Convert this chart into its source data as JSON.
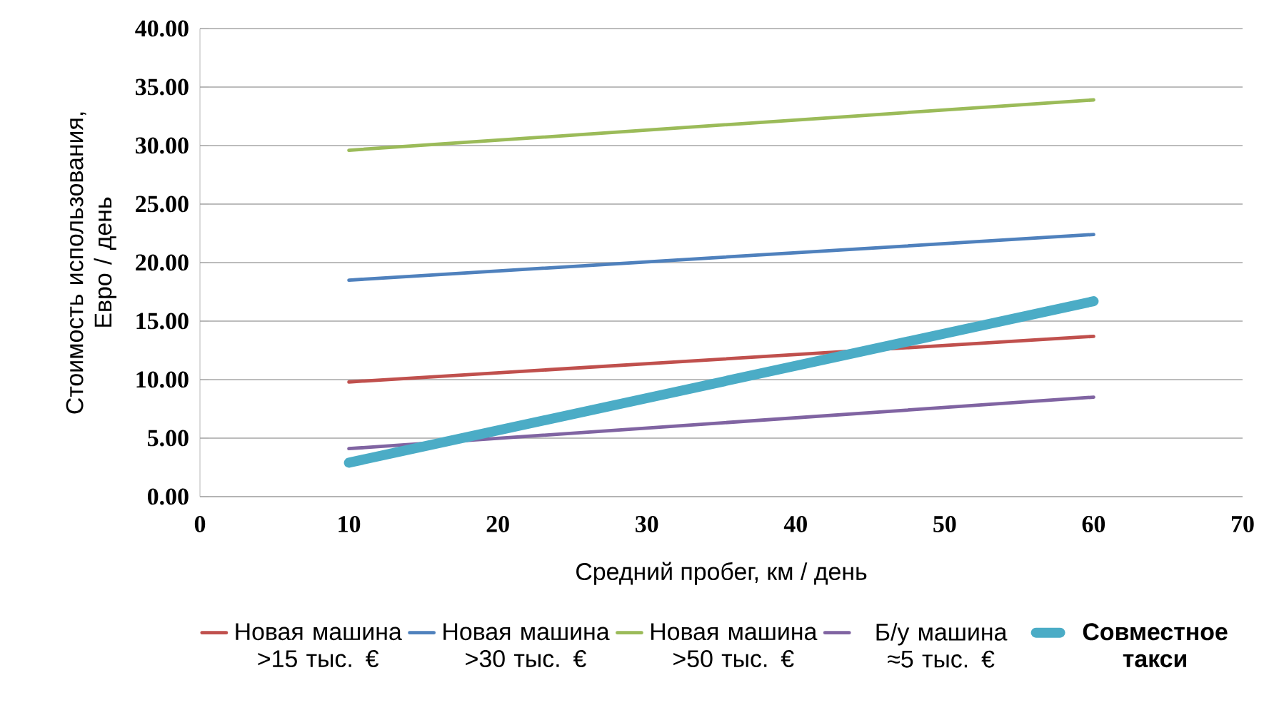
{
  "chart_data": {
    "type": "line",
    "xlabel": "Средний пробег, км / день",
    "ylabel": "Стоимость использования, Евро / день",
    "x": [
      10,
      60
    ],
    "series": [
      {
        "name": "Новая машина >15 тыс. €",
        "color": "#c0504d",
        "values": [
          9.8,
          13.7
        ]
      },
      {
        "name": "Новая машина >30 тыс. €",
        "color": "#4f81bd",
        "values": [
          18.5,
          22.4
        ]
      },
      {
        "name": "Новая машина >50 тыс. €",
        "color": "#9bbb59",
        "values": [
          29.6,
          33.9
        ]
      },
      {
        "name": "Б/у машина ≈5 тыс. €",
        "color": "#8064a2",
        "values": [
          4.1,
          8.5
        ]
      },
      {
        "name": "Совместное такси",
        "color": "#4bacc6",
        "values": [
          2.9,
          16.7
        ]
      }
    ],
    "xlim": [
      0,
      70
    ],
    "xticks": [
      0,
      10,
      20,
      30,
      40,
      50,
      60,
      70
    ],
    "ylim": [
      0,
      40
    ],
    "yticks": [
      {
        "value": 0,
        "label": "0.00"
      },
      {
        "value": 5,
        "label": "5.00"
      },
      {
        "value": 10,
        "label": "10.00"
      },
      {
        "value": 15,
        "label": "15.00"
      },
      {
        "value": 20,
        "label": "20.00"
      },
      {
        "value": 25,
        "label": "25.00"
      },
      {
        "value": 30,
        "label": "30.00"
      },
      {
        "value": 35,
        "label": "35.00"
      },
      {
        "value": 40,
        "label": "40.00"
      }
    ],
    "grid": "y",
    "legend": "bottom",
    "marker": "none",
    "line_style": "solid"
  }
}
